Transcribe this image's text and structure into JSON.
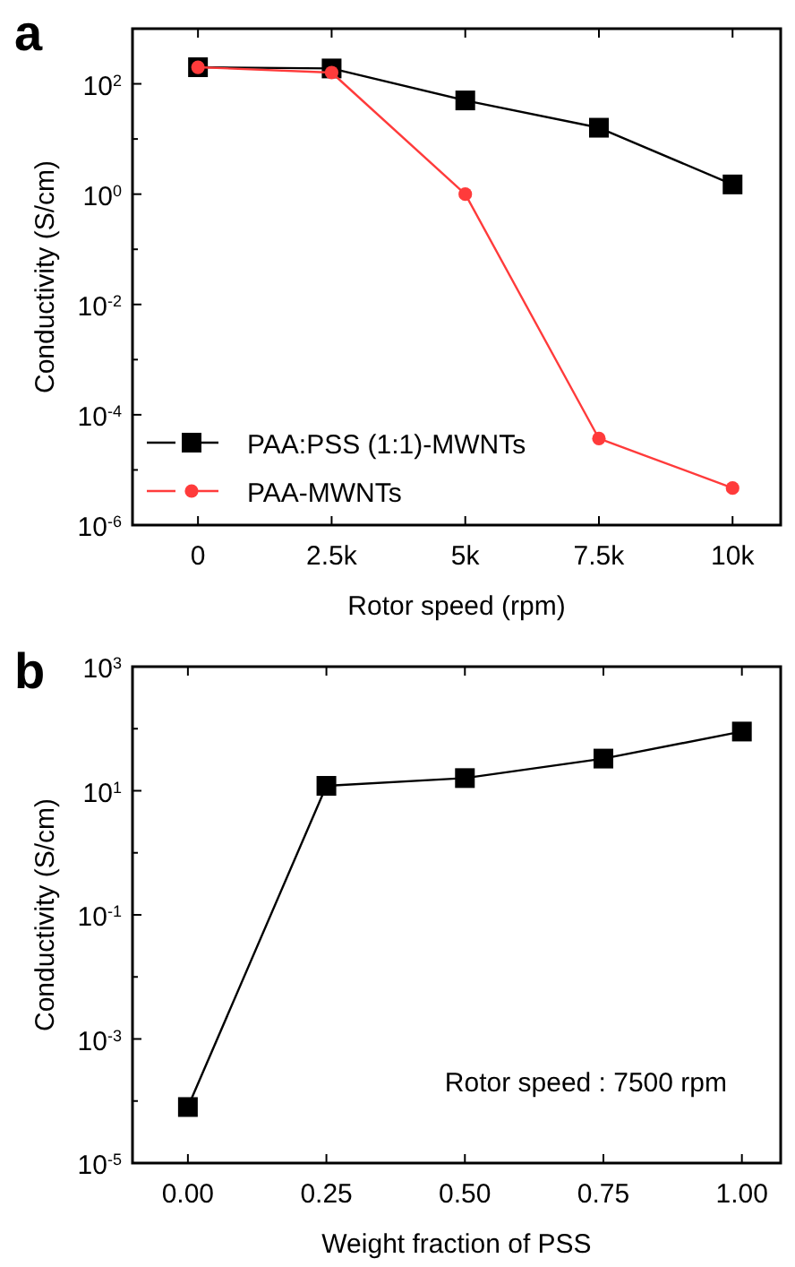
{
  "chart_data": [
    {
      "type": "line",
      "title": "a",
      "xlabel": "Rotor speed (rpm)",
      "ylabel": "Conductivity (S/cm)",
      "log": "y",
      "x": [
        0,
        2500,
        5000,
        7500,
        10000
      ],
      "series": [
        {
          "name": "PAA:PSS (1:1)-MWNTs",
          "color": "#000000",
          "marker": "square",
          "values": [
            200,
            190,
            50,
            16,
            1.5
          ]
        },
        {
          "name": "PAA-MWNTs",
          "color": "#ff3b3b",
          "marker": "circle",
          "values": [
            200,
            160,
            1,
            3.7e-05,
            4.7e-06
          ]
        }
      ],
      "xlim": [
        -1225,
        10900
      ],
      "xticks": [
        0,
        {
          "value": 2500,
          "label": "2.5k"
        },
        {
          "value": 5000,
          "label": "5k"
        },
        {
          "value": 7500,
          "label": "7.5k"
        },
        {
          "value": 10000,
          "label": "10k"
        }
      ],
      "ylim": [
        1e-06,
        1000
      ],
      "yticks": [
        {
          "value": 1e-06,
          "label": "10$^{-6}$"
        },
        {
          "value": 1e-05,
          "label": null
        },
        {
          "value": 0.0001,
          "label": "10$^{-4}$"
        },
        {
          "value": 0.001,
          "label": null
        },
        {
          "value": 0.01,
          "label": "10$^{-2}$"
        },
        {
          "value": 0.1,
          "label": null
        },
        {
          "value": 1,
          "label": "10$^{0}$"
        },
        {
          "value": 10,
          "label": null
        },
        {
          "value": 100,
          "label": "10$^{2}$"
        }
      ],
      "legend": "bottom left",
      "grid": false,
      "line_style": "solid"
    },
    {
      "type": "line",
      "title": "b",
      "xlabel": "Weight fraction of PSS",
      "ylabel": "Conductivity (S/cm)",
      "log": "y",
      "x": [
        0,
        0.25,
        0.5,
        0.75,
        1
      ],
      "series": [
        {
          "color": "#000000",
          "marker": "square",
          "values": [
            8e-05,
            12,
            16,
            33,
            90
          ]
        }
      ],
      "xlim": [
        -0.1,
        1.07
      ],
      "xticks": [
        {
          "value": 0,
          "label": "0.00"
        },
        {
          "value": 0.25,
          "label": "0.25"
        },
        {
          "value": 0.5,
          "label": "0.50"
        },
        {
          "value": 0.75,
          "label": "0.75"
        },
        {
          "value": 1,
          "label": "1.00"
        }
      ],
      "ylim": [
        1e-05,
        1000
      ],
      "yticks": [
        {
          "value": 1e-05,
          "label": "10$^{-5}$"
        },
        {
          "value": 0.0001,
          "label": null
        },
        {
          "value": 0.001,
          "label": "10$^{-3}$"
        },
        {
          "value": 0.01,
          "label": null
        },
        {
          "value": 0.1,
          "label": "10$^{-1}$"
        },
        {
          "value": 1,
          "label": null
        },
        {
          "value": 10,
          "label": "10$^{1}$"
        },
        {
          "value": 100,
          "label": null
        },
        {
          "value": 1000,
          "label": "10$^{3}$"
        }
      ],
      "annotations": [
        "Rotor speed : 7500 rpm"
      ],
      "grid": false,
      "line_style": "solid"
    }
  ]
}
